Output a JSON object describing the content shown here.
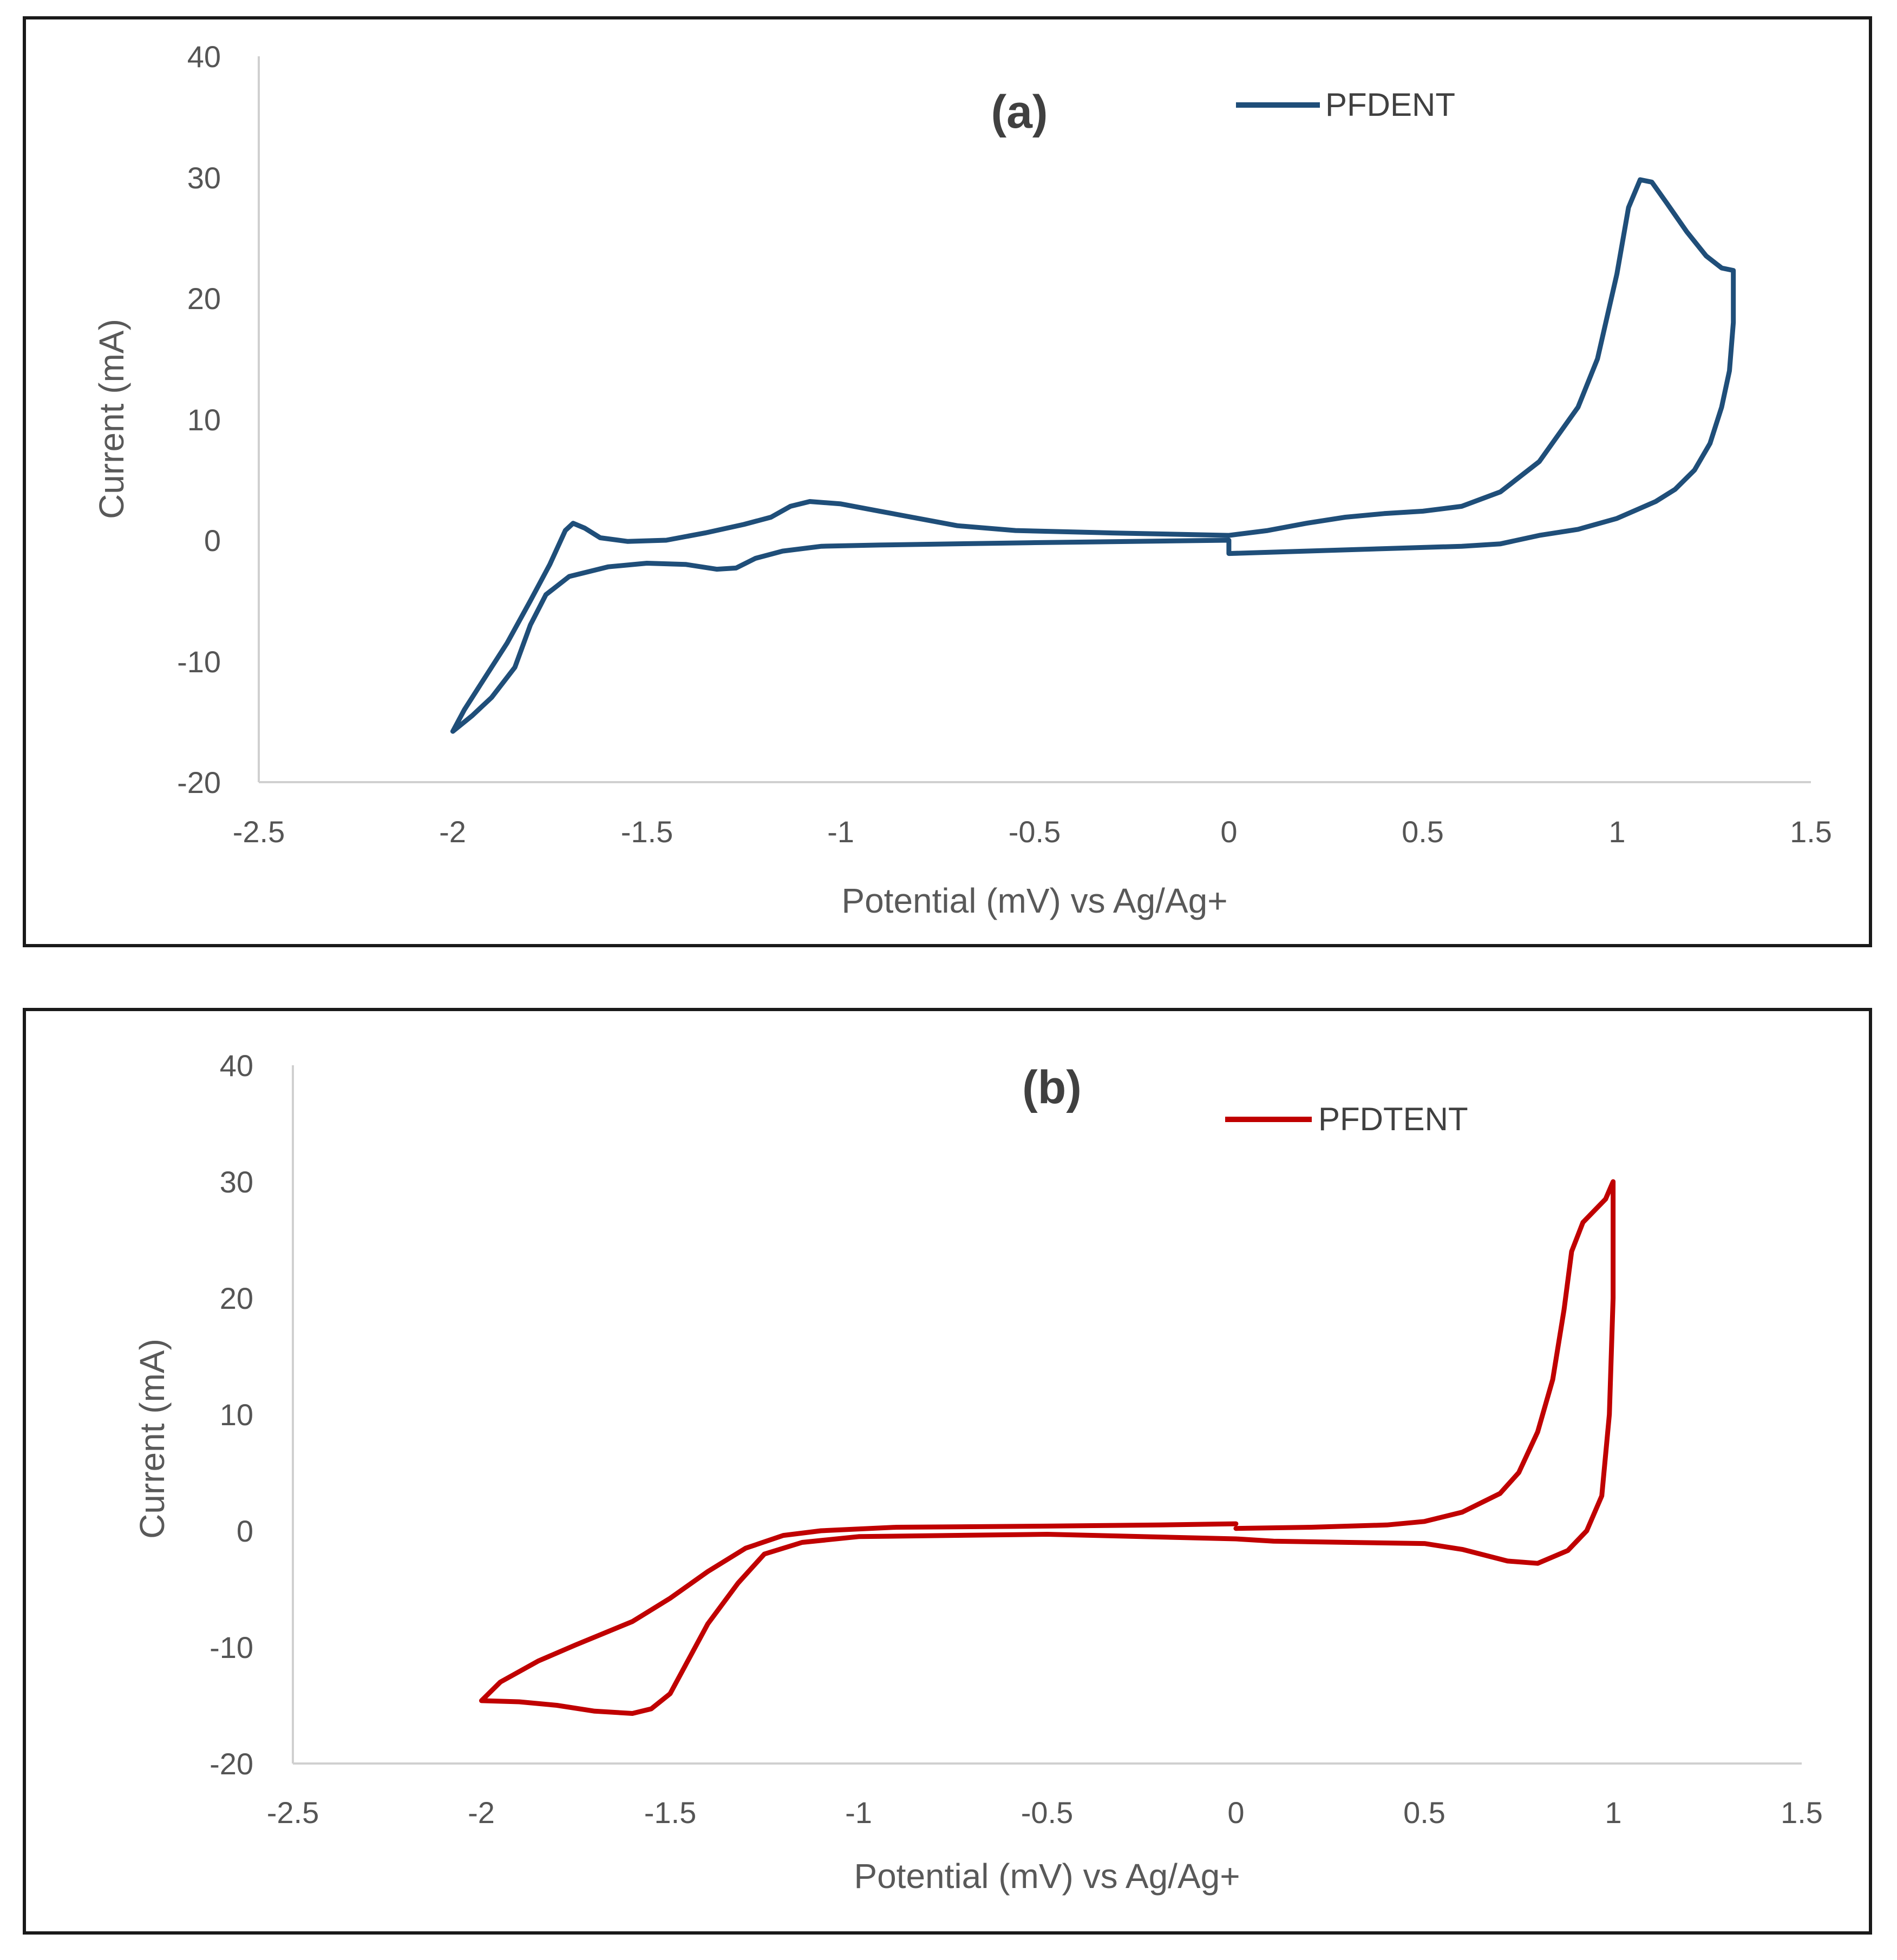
{
  "chart_data": [
    {
      "type": "line",
      "panel_label": "(a)",
      "title": "(a)",
      "xlabel": "Potential (mV) vs Ag/Ag+",
      "ylabel": "Current (mA)",
      "xlim": [
        -2.5,
        1.5
      ],
      "ylim": [
        -20,
        40
      ],
      "x_ticks": [
        -2.5,
        -2,
        -1.5,
        -1,
        -0.5,
        0,
        0.5,
        1,
        1.5
      ],
      "x_tick_labels": [
        "-2.5",
        "-2",
        "-1.5",
        "-1",
        "-0.5",
        "0",
        "0.5",
        "1",
        "1.5"
      ],
      "y_ticks": [
        -20,
        -10,
        0,
        10,
        20,
        30,
        40
      ],
      "y_tick_labels": [
        "-20",
        "-10",
        "0",
        "10",
        "20",
        "30",
        "40"
      ],
      "grid": false,
      "legend_position": "top-right",
      "series": [
        {
          "name": "PFDENT",
          "color": "#1f4e79",
          "points": [
            [
              0.0,
              0.4
            ],
            [
              0.1,
              0.8
            ],
            [
              0.2,
              1.4
            ],
            [
              0.3,
              1.9
            ],
            [
              0.4,
              2.2
            ],
            [
              0.5,
              2.4
            ],
            [
              0.6,
              2.8
            ],
            [
              0.7,
              4.0
            ],
            [
              0.8,
              6.5
            ],
            [
              0.9,
              11.0
            ],
            [
              0.95,
              15.0
            ],
            [
              1.0,
              22.0
            ],
            [
              1.03,
              27.5
            ],
            [
              1.06,
              29.8
            ],
            [
              1.09,
              29.6
            ],
            [
              1.13,
              27.8
            ],
            [
              1.18,
              25.5
            ],
            [
              1.23,
              23.5
            ],
            [
              1.27,
              22.5
            ],
            [
              1.3,
              22.3
            ],
            [
              1.3,
              18.0
            ],
            [
              1.29,
              14.0
            ],
            [
              1.27,
              11.0
            ],
            [
              1.24,
              8.0
            ],
            [
              1.2,
              5.8
            ],
            [
              1.15,
              4.2
            ],
            [
              1.1,
              3.2
            ],
            [
              1.05,
              2.5
            ],
            [
              1.0,
              1.8
            ],
            [
              0.9,
              0.9
            ],
            [
              0.8,
              0.4
            ],
            [
              0.7,
              -0.3
            ],
            [
              0.6,
              -0.5
            ],
            [
              0.4,
              -0.7
            ],
            [
              0.2,
              -0.9
            ],
            [
              0.0,
              -1.1
            ],
            [
              0.0,
              0.0
            ],
            [
              -0.5,
              -0.2
            ],
            [
              -0.9,
              -0.4
            ],
            [
              -1.05,
              -0.5
            ],
            [
              -1.15,
              -0.9
            ],
            [
              -1.22,
              -1.5
            ],
            [
              -1.27,
              -2.3
            ],
            [
              -1.32,
              -2.4
            ],
            [
              -1.4,
              -2.0
            ],
            [
              -1.5,
              -1.9
            ],
            [
              -1.6,
              -2.2
            ],
            [
              -1.7,
              -3.0
            ],
            [
              -1.76,
              -4.5
            ],
            [
              -1.8,
              -7.0
            ],
            [
              -1.84,
              -10.5
            ],
            [
              -1.9,
              -13.0
            ],
            [
              -1.95,
              -14.5
            ],
            [
              -2.0,
              -15.8
            ],
            [
              -1.97,
              -14.0
            ],
            [
              -1.92,
              -11.5
            ],
            [
              -1.86,
              -8.5
            ],
            [
              -1.8,
              -5.0
            ],
            [
              -1.75,
              -2.0
            ],
            [
              -1.71,
              0.8
            ],
            [
              -1.69,
              1.4
            ],
            [
              -1.66,
              1.0
            ],
            [
              -1.62,
              0.2
            ],
            [
              -1.55,
              -0.1
            ],
            [
              -1.45,
              0.0
            ],
            [
              -1.35,
              0.6
            ],
            [
              -1.25,
              1.3
            ],
            [
              -1.18,
              1.9
            ],
            [
              -1.13,
              2.8
            ],
            [
              -1.08,
              3.2
            ],
            [
              -1.0,
              3.0
            ],
            [
              -0.9,
              2.4
            ],
            [
              -0.8,
              1.8
            ],
            [
              -0.7,
              1.2
            ],
            [
              -0.55,
              0.8
            ],
            [
              -0.3,
              0.6
            ],
            [
              0.0,
              0.4
            ]
          ]
        }
      ]
    },
    {
      "type": "line",
      "panel_label": "(b)",
      "title": "(b)",
      "xlabel": "Potential (mV) vs Ag/Ag+",
      "ylabel": "Current (mA)",
      "xlim": [
        -2.5,
        1.5
      ],
      "ylim": [
        -20,
        40
      ],
      "x_ticks": [
        -2.5,
        -2,
        -1.5,
        -1,
        -0.5,
        0,
        0.5,
        1,
        1.5
      ],
      "x_tick_labels": [
        "-2.5",
        "-2",
        "-1.5",
        "-1",
        "-0.5",
        "0",
        "0.5",
        "1",
        "1.5"
      ],
      "y_ticks": [
        -20,
        -10,
        0,
        10,
        20,
        30,
        40
      ],
      "y_tick_labels": [
        "-20",
        "-10",
        "0",
        "10",
        "20",
        "30",
        "40"
      ],
      "grid": false,
      "legend_position": "top-right",
      "series": [
        {
          "name": "PFDTENT",
          "color": "#c00000",
          "points": [
            [
              0.0,
              0.2
            ],
            [
              0.2,
              0.3
            ],
            [
              0.4,
              0.5
            ],
            [
              0.5,
              0.8
            ],
            [
              0.6,
              1.6
            ],
            [
              0.7,
              3.2
            ],
            [
              0.75,
              5.0
            ],
            [
              0.8,
              8.5
            ],
            [
              0.84,
              13.0
            ],
            [
              0.87,
              19.0
            ],
            [
              0.89,
              24.0
            ],
            [
              0.92,
              26.5
            ],
            [
              0.95,
              27.5
            ],
            [
              0.98,
              28.5
            ],
            [
              1.0,
              30.0
            ],
            [
              1.0,
              20.0
            ],
            [
              0.99,
              10.0
            ],
            [
              0.97,
              3.0
            ],
            [
              0.93,
              0.0
            ],
            [
              0.88,
              -1.7
            ],
            [
              0.8,
              -2.8
            ],
            [
              0.72,
              -2.6
            ],
            [
              0.6,
              -1.6
            ],
            [
              0.5,
              -1.1
            ],
            [
              0.3,
              -1.0
            ],
            [
              0.1,
              -0.9
            ],
            [
              0.0,
              -0.7
            ],
            [
              -0.5,
              -0.3
            ],
            [
              -1.0,
              -0.5
            ],
            [
              -1.15,
              -1.0
            ],
            [
              -1.25,
              -2.0
            ],
            [
              -1.32,
              -4.5
            ],
            [
              -1.4,
              -8.0
            ],
            [
              -1.45,
              -11.0
            ],
            [
              -1.5,
              -14.0
            ],
            [
              -1.55,
              -15.3
            ],
            [
              -1.6,
              -15.7
            ],
            [
              -1.7,
              -15.5
            ],
            [
              -1.8,
              -15.0
            ],
            [
              -1.9,
              -14.7
            ],
            [
              -2.0,
              -14.6
            ],
            [
              -1.95,
              -13.0
            ],
            [
              -1.85,
              -11.2
            ],
            [
              -1.75,
              -9.8
            ],
            [
              -1.6,
              -7.8
            ],
            [
              -1.5,
              -5.8
            ],
            [
              -1.4,
              -3.5
            ],
            [
              -1.3,
              -1.5
            ],
            [
              -1.2,
              -0.4
            ],
            [
              -1.1,
              0.0
            ],
            [
              -0.9,
              0.3
            ],
            [
              -0.5,
              0.4
            ],
            [
              -0.2,
              0.5
            ],
            [
              0.0,
              0.6
            ]
          ]
        }
      ]
    }
  ]
}
